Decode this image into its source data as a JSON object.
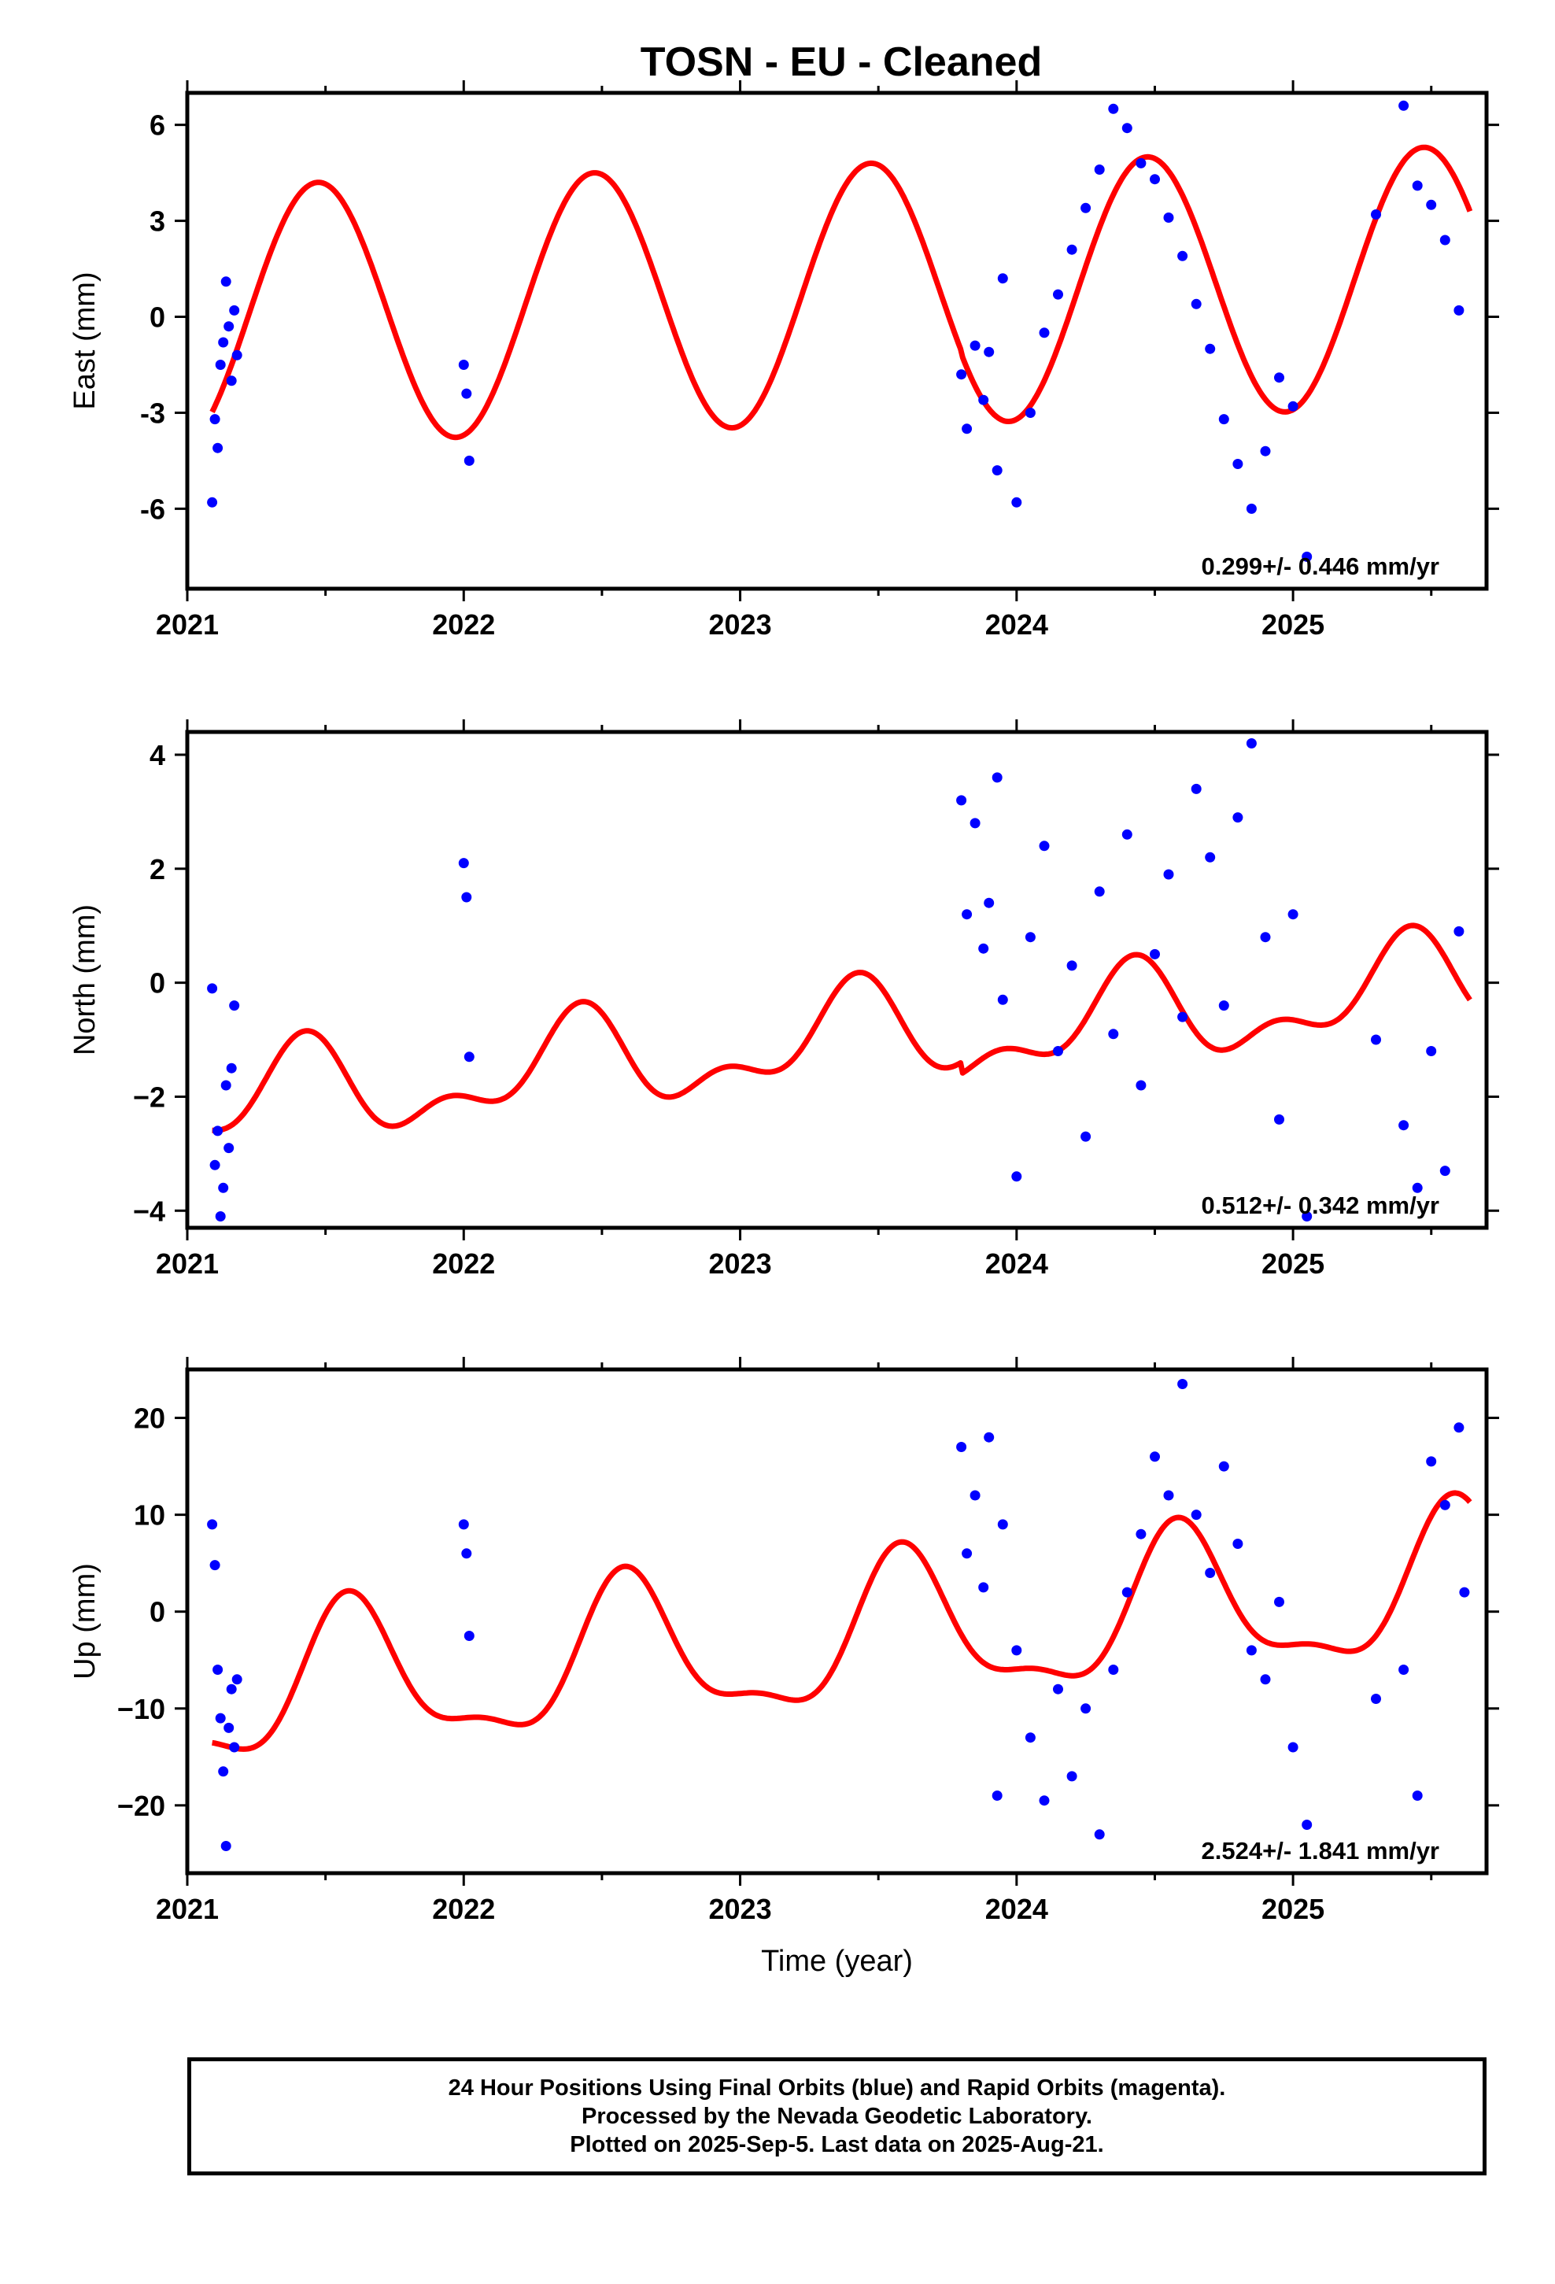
{
  "title": "TOSN  - EU - Cleaned",
  "colors": {
    "fit_line": "#ff0000",
    "final_points": "#0000ff",
    "frame": "#000000"
  },
  "chart_data": [
    {
      "type": "scatter",
      "panel": "east",
      "ylabel": "East (mm)",
      "xlabel": "",
      "xlim": [
        2021.0,
        2025.7
      ],
      "ylim": [
        -8.5,
        7.0
      ],
      "xticks": [
        2021,
        2022,
        2023,
        2024,
        2025
      ],
      "yticks": [
        -6,
        -3,
        0,
        3,
        6
      ],
      "xtick_labels": [
        "2021",
        "2022",
        "2023",
        "2024",
        "2025"
      ],
      "ytick_labels": [
        "-6",
        "-3",
        "0",
        "3",
        "6"
      ],
      "rate_label": "0.299+/- 0.446 mm/yr",
      "grid": false,
      "model": {
        "trend": [
          0.0,
          0.299
        ],
        "annual": [
          -4.0,
          0.7
        ],
        "semiannual": [
          0.0,
          0.0
        ],
        "offset": -0.1,
        "ramp_after": 2023.8
      },
      "series": [
        {
          "kind": "fit",
          "values": []
        },
        {
          "kind": "points",
          "x": [
            2021.09,
            2021.1,
            2021.11,
            2021.12,
            2021.13,
            2021.14,
            2021.15,
            2021.16,
            2021.17,
            2021.18,
            2022.0,
            2022.01,
            2022.02,
            2023.8,
            2023.82,
            2023.85,
            2023.88,
            2023.9,
            2023.93,
            2023.95,
            2024.0,
            2024.05,
            2024.1,
            2024.15,
            2024.2,
            2024.25,
            2024.3,
            2024.35,
            2024.4,
            2024.45,
            2024.5,
            2024.55,
            2024.6,
            2024.65,
            2024.7,
            2024.75,
            2024.8,
            2024.85,
            2024.9,
            2024.95,
            2025.0,
            2025.05,
            2025.3,
            2025.4,
            2025.45,
            2025.5,
            2025.55,
            2025.6
          ],
          "y": [
            -5.8,
            -3.2,
            -4.1,
            -1.5,
            -0.8,
            1.1,
            -0.3,
            -2.0,
            0.2,
            -1.2,
            -1.5,
            -2.4,
            -4.5,
            -1.8,
            -3.5,
            -0.9,
            -2.6,
            -1.1,
            -4.8,
            1.2,
            -5.8,
            -3.0,
            -0.5,
            0.7,
            2.1,
            3.4,
            4.6,
            6.5,
            5.9,
            4.8,
            4.3,
            3.1,
            1.9,
            0.4,
            -1.0,
            -3.2,
            -4.6,
            -6.0,
            -4.2,
            -1.9,
            -2.8,
            -7.5,
            3.2,
            6.6,
            4.1,
            3.5,
            2.4,
            0.2
          ]
        }
      ]
    },
    {
      "type": "scatter",
      "panel": "north",
      "ylabel": "North (mm)",
      "xlabel": "",
      "xlim": [
        2021.0,
        2025.7
      ],
      "ylim": [
        -4.3,
        4.4
      ],
      "xticks": [
        2021,
        2022,
        2023,
        2024,
        2025
      ],
      "yticks": [
        -4,
        -2,
        0,
        2,
        4
      ],
      "xtick_labels": [
        "2021",
        "2022",
        "2023",
        "2024",
        "2025"
      ],
      "ytick_labels": [
        "−4",
        "−2",
        "0",
        "2",
        "4"
      ],
      "rate_label": "0.512+/- 0.342 mm/yr",
      "grid": false,
      "model": {
        "trend": [
          -2.2,
          0.512
        ],
        "annual": [
          -0.6,
          0.4
        ],
        "semiannual": [
          0.3,
          -0.3
        ],
        "offset": -0.2,
        "ramp_after": 2023.8
      },
      "series": [
        {
          "kind": "fit",
          "values": []
        },
        {
          "kind": "points",
          "x": [
            2021.09,
            2021.1,
            2021.11,
            2021.12,
            2021.13,
            2021.14,
            2021.15,
            2021.16,
            2021.17,
            2022.0,
            2022.01,
            2022.02,
            2023.8,
            2023.82,
            2023.85,
            2023.88,
            2023.9,
            2023.93,
            2023.95,
            2024.0,
            2024.05,
            2024.1,
            2024.15,
            2024.2,
            2024.25,
            2024.3,
            2024.35,
            2024.4,
            2024.45,
            2024.5,
            2024.55,
            2024.6,
            2024.65,
            2024.7,
            2024.75,
            2024.8,
            2024.85,
            2024.9,
            2024.95,
            2025.0,
            2025.05,
            2025.3,
            2025.4,
            2025.45,
            2025.5,
            2025.55,
            2025.6
          ],
          "y": [
            -0.1,
            -3.2,
            -2.6,
            -4.1,
            -3.6,
            -1.8,
            -2.9,
            -1.5,
            -0.4,
            2.1,
            1.5,
            -1.3,
            3.2,
            1.2,
            2.8,
            0.6,
            1.4,
            3.6,
            -0.3,
            -3.4,
            0.8,
            2.4,
            -1.2,
            0.3,
            -2.7,
            1.6,
            -0.9,
            2.6,
            -1.8,
            0.5,
            1.9,
            -0.6,
            3.4,
            2.2,
            -0.4,
            2.9,
            4.2,
            0.8,
            -2.4,
            1.2,
            -4.1,
            -1.0,
            -2.5,
            -3.6,
            -1.2,
            -3.3,
            0.9
          ]
        }
      ]
    },
    {
      "type": "scatter",
      "panel": "up",
      "ylabel": "Up (mm)",
      "xlabel": "Time (year)",
      "xlim": [
        2021.0,
        2025.7
      ],
      "ylim": [
        -27.0,
        25.0
      ],
      "xticks": [
        2021,
        2022,
        2023,
        2024,
        2025
      ],
      "yticks": [
        -20,
        -10,
        0,
        10,
        20
      ],
      "xtick_labels": [
        "2021",
        "2022",
        "2023",
        "2024",
        "2025"
      ],
      "ytick_labels": [
        "−20",
        "−10",
        "0",
        "10",
        "20"
      ],
      "rate_label": "2.524+/- 1.841 mm/yr",
      "grid": false,
      "model": {
        "trend": [
          -9.0,
          2.524
        ],
        "annual": [
          -6.0,
          -4.0
        ],
        "semiannual": [
          1.5,
          2.0
        ],
        "offset": 0.0,
        "ramp_after": 2023.8
      },
      "series": [
        {
          "kind": "fit",
          "values": []
        },
        {
          "kind": "points",
          "x": [
            2021.09,
            2021.1,
            2021.11,
            2021.12,
            2021.13,
            2021.14,
            2021.15,
            2021.16,
            2021.17,
            2021.18,
            2022.0,
            2022.01,
            2022.02,
            2023.8,
            2023.82,
            2023.85,
            2023.88,
            2023.9,
            2023.93,
            2023.95,
            2024.0,
            2024.05,
            2024.1,
            2024.15,
            2024.2,
            2024.25,
            2024.3,
            2024.35,
            2024.4,
            2024.45,
            2024.5,
            2024.55,
            2024.6,
            2024.65,
            2024.7,
            2024.75,
            2024.8,
            2024.85,
            2024.9,
            2024.95,
            2025.0,
            2025.05,
            2025.3,
            2025.4,
            2025.45,
            2025.5,
            2025.55,
            2025.6,
            2025.62
          ],
          "y": [
            9.0,
            4.8,
            -6.0,
            -11.0,
            -16.5,
            -24.2,
            -12.0,
            -8.0,
            -14.0,
            -7.0,
            9.0,
            6.0,
            -2.5,
            17.0,
            6.0,
            12.0,
            2.5,
            18.0,
            -19.0,
            9.0,
            -4.0,
            -13.0,
            -19.5,
            -8.0,
            -17.0,
            -10.0,
            -23.0,
            -6.0,
            2.0,
            8.0,
            16.0,
            12.0,
            23.5,
            10.0,
            4.0,
            15.0,
            7.0,
            -4.0,
            -7.0,
            1.0,
            -14.0,
            -22.0,
            -9.0,
            -6.0,
            -19.0,
            15.5,
            11.0,
            19.0,
            2.0
          ]
        }
      ]
    }
  ],
  "note_lines": [
    "24 Hour Positions Using Final Orbits (blue) and Rapid Orbits (magenta).",
    "Processed by the Nevada Geodetic Laboratory.",
    "Plotted on 2025-Sep-5. Last data on 2025-Aug-21."
  ]
}
